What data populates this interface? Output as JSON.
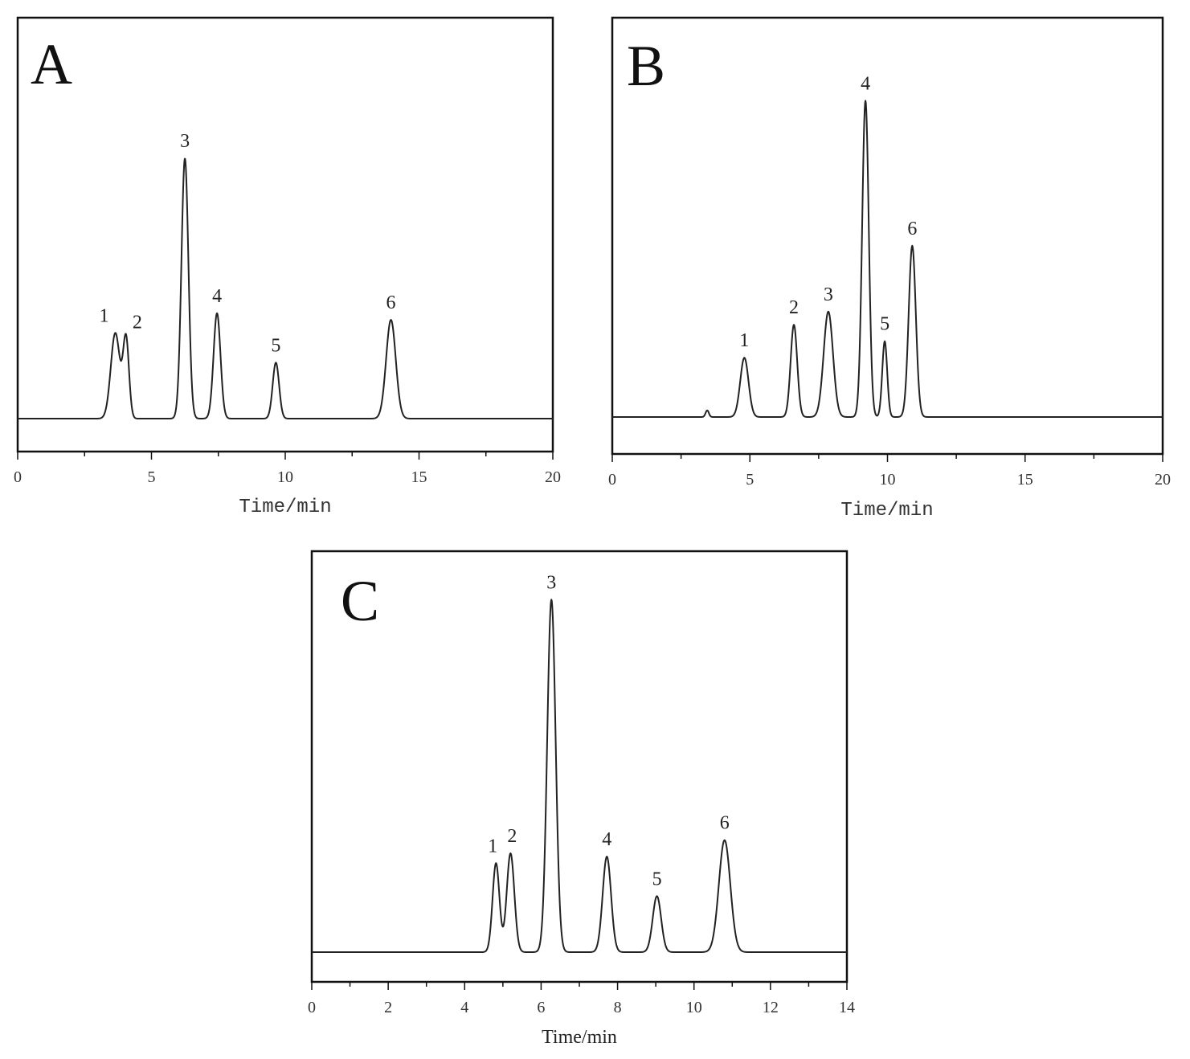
{
  "chart_data": [
    {
      "type": "line",
      "panel": "A",
      "xlabel": "Time/min",
      "ylabel": "",
      "xlim": [
        0,
        20
      ],
      "xticks": [
        0,
        5,
        10,
        15,
        20
      ],
      "xtick_labels": [
        "0",
        "5",
        "10",
        "15",
        "20"
      ],
      "grid": false,
      "series": [
        {
          "peaks": [
            {
              "label": "1",
              "time": 3.65,
              "height": 0.26,
              "width": 0.17
            },
            {
              "label": "2",
              "time": 4.05,
              "height": 0.24,
              "width": 0.11
            },
            {
              "label": "3",
              "time": 6.25,
              "height": 0.79,
              "width": 0.13
            },
            {
              "label": "4",
              "time": 7.45,
              "height": 0.32,
              "width": 0.13
            },
            {
              "label": "5",
              "time": 9.65,
              "height": 0.17,
              "width": 0.12
            },
            {
              "label": "6",
              "time": 13.95,
              "height": 0.3,
              "width": 0.18
            }
          ]
        }
      ]
    },
    {
      "type": "line",
      "panel": "B",
      "xlabel": "Time/min",
      "ylabel": "",
      "xlim": [
        0,
        20
      ],
      "xticks": [
        0,
        5,
        10,
        15,
        20
      ],
      "xtick_labels": [
        "0",
        "5",
        "10",
        "15",
        "20"
      ],
      "grid": false,
      "series": [
        {
          "peaks": [
            {
              "label": "",
              "time": 3.45,
              "height": 0.02,
              "width": 0.06
            },
            {
              "label": "1",
              "time": 4.8,
              "height": 0.18,
              "width": 0.15
            },
            {
              "label": "2",
              "time": 6.6,
              "height": 0.28,
              "width": 0.12
            },
            {
              "label": "3",
              "time": 7.85,
              "height": 0.32,
              "width": 0.17
            },
            {
              "label": "4",
              "time": 9.2,
              "height": 0.96,
              "width": 0.12
            },
            {
              "label": "5",
              "time": 9.9,
              "height": 0.23,
              "width": 0.09
            },
            {
              "label": "6",
              "time": 10.9,
              "height": 0.52,
              "width": 0.13
            }
          ]
        }
      ]
    },
    {
      "type": "line",
      "panel": "C",
      "xlabel": "Time/min",
      "ylabel": "",
      "xlim": [
        0,
        14
      ],
      "xticks": [
        0,
        2,
        4,
        6,
        8,
        10,
        12,
        14
      ],
      "xtick_labels": [
        "0",
        "2",
        "4",
        "6",
        "8",
        "10",
        "12",
        "14"
      ],
      "grid": false,
      "series": [
        {
          "peaks": [
            {
              "label": "1",
              "time": 4.82,
              "height": 0.27,
              "width": 0.09
            },
            {
              "label": "2",
              "time": 5.2,
              "height": 0.3,
              "width": 0.1
            },
            {
              "label": "3",
              "time": 6.27,
              "height": 1.07,
              "width": 0.11
            },
            {
              "label": "4",
              "time": 7.72,
              "height": 0.29,
              "width": 0.11
            },
            {
              "label": "5",
              "time": 9.03,
              "height": 0.17,
              "width": 0.11
            },
            {
              "label": "6",
              "time": 10.8,
              "height": 0.34,
              "width": 0.15
            }
          ]
        }
      ]
    }
  ]
}
